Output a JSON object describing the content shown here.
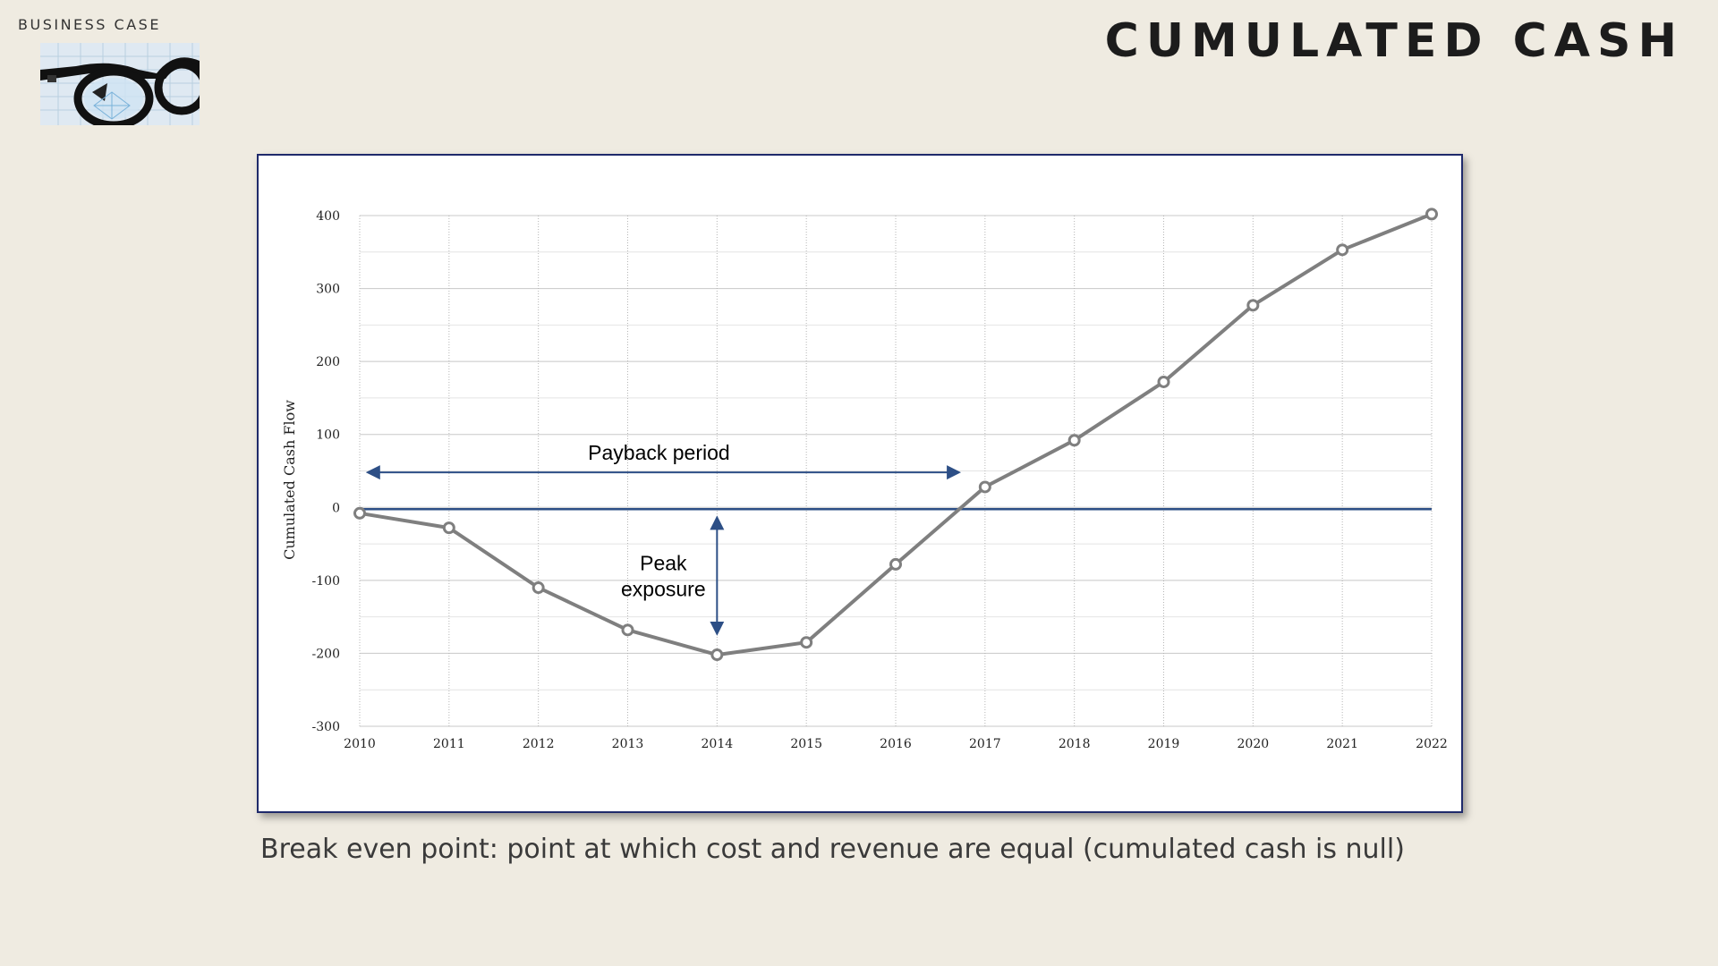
{
  "header": {
    "section": "BUSINESS CASE",
    "title": "CUMULATED CASH"
  },
  "logo": {
    "icon": "eyeglasses-logo"
  },
  "caption": "Break even point: point at which cost and revenue are equal (cumulated cash is null)",
  "colors": {
    "background": "#efebe1",
    "line": "#7f7f7f",
    "accent": "#2d4f86",
    "frame": "#1f2a6b"
  },
  "chart_data": {
    "type": "line",
    "title": "",
    "xlabel": "",
    "ylabel": "Cumulated Cash Flow",
    "x": [
      "2010",
      "2011",
      "2012",
      "2013",
      "2014",
      "2015",
      "2016",
      "2017",
      "2018",
      "2019",
      "2020",
      "2021",
      "2022"
    ],
    "series": [
      {
        "values": [
          -8,
          -28,
          -110,
          -168,
          -202,
          -185,
          -78,
          28,
          92,
          172,
          277,
          353,
          402
        ]
      }
    ],
    "ylim": [
      -300,
      400
    ],
    "yticks": [
      "400",
      "300",
      "200",
      "100",
      "0",
      "-100",
      "-200",
      "-300"
    ],
    "grid": true,
    "annotations": {
      "payback": {
        "label": "Payback period",
        "from": 2010,
        "to": 2016.7,
        "y": 48
      },
      "peak": {
        "label_line1": "Peak",
        "label_line2": "exposure",
        "x": 2014,
        "from": -15,
        "to": -172
      }
    }
  }
}
